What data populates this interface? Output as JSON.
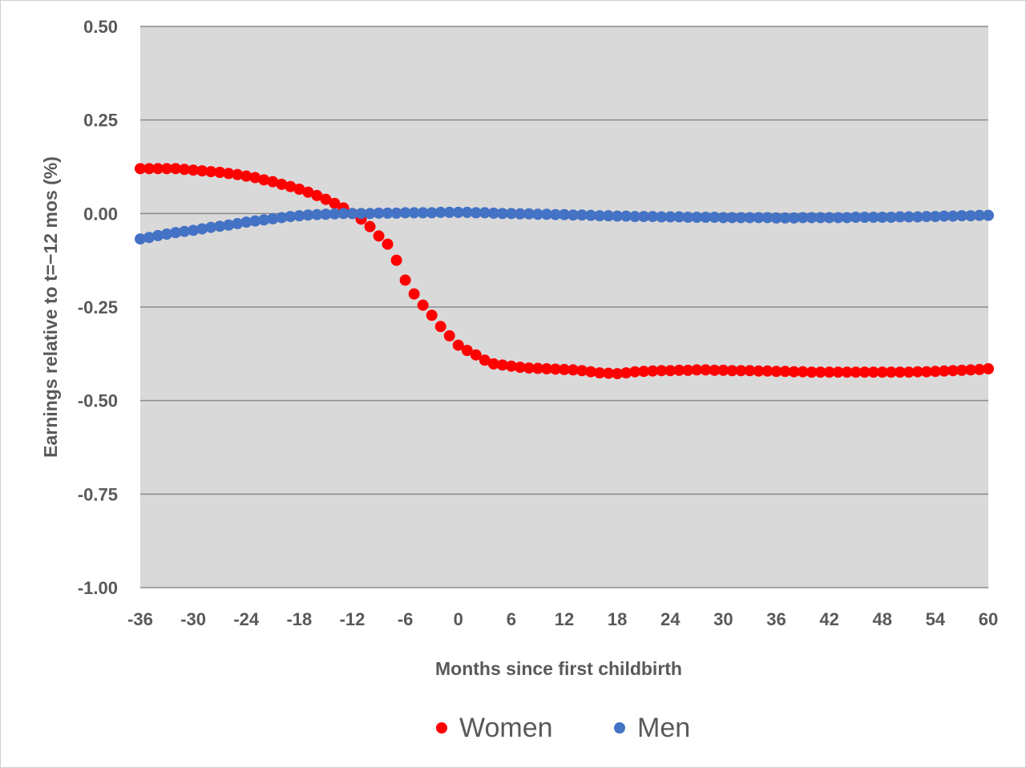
{
  "chart_data": {
    "type": "scatter",
    "title": "",
    "xlabel": "Months since first childbirth",
    "ylabel": "Earnings relative to t=−12 mos (%)",
    "xlim": [
      -36,
      60
    ],
    "ylim": [
      -1.0,
      0.5
    ],
    "x_ticks": [
      -36,
      -30,
      -24,
      -18,
      -12,
      -6,
      0,
      6,
      12,
      18,
      24,
      30,
      36,
      42,
      48,
      54,
      60
    ],
    "x_tick_labels": [
      "-36",
      "-30",
      "-24",
      "-18",
      "-12",
      "-6",
      "0",
      "6",
      "12",
      "18",
      "24",
      "30",
      "36",
      "42",
      "48",
      "54",
      "60"
    ],
    "y_ticks": [
      0.5,
      0.25,
      0.0,
      -0.25,
      -0.5,
      -0.75,
      -1.0
    ],
    "y_tick_labels": [
      "0.50",
      "0.25",
      "0.00",
      "-0.25",
      "-0.50",
      "-0.75",
      "-1.00"
    ],
    "grid": "horizontal",
    "plot_background": "#d9d9d9",
    "legend_position": "bottom",
    "x": [
      -36,
      -35,
      -34,
      -33,
      -32,
      -31,
      -30,
      -29,
      -28,
      -27,
      -26,
      -25,
      -24,
      -23,
      -22,
      -21,
      -20,
      -19,
      -18,
      -17,
      -16,
      -15,
      -14,
      -13,
      -12,
      -11,
      -10,
      -9,
      -8,
      -7,
      -6,
      -5,
      -4,
      -3,
      -2,
      -1,
      0,
      1,
      2,
      3,
      4,
      5,
      6,
      7,
      8,
      9,
      10,
      11,
      12,
      13,
      14,
      15,
      16,
      17,
      18,
      19,
      20,
      21,
      22,
      23,
      24,
      25,
      26,
      27,
      28,
      29,
      30,
      31,
      32,
      33,
      34,
      35,
      36,
      37,
      38,
      39,
      40,
      41,
      42,
      43,
      44,
      45,
      46,
      47,
      48,
      49,
      50,
      51,
      52,
      53,
      54,
      55,
      56,
      57,
      58,
      59,
      60
    ],
    "series": [
      {
        "name": "Women",
        "color": "#ff0000",
        "values": [
          0.12,
          0.12,
          0.12,
          0.12,
          0.12,
          0.118,
          0.116,
          0.114,
          0.112,
          0.11,
          0.107,
          0.104,
          0.1,
          0.096,
          0.09,
          0.085,
          0.078,
          0.072,
          0.065,
          0.057,
          0.048,
          0.038,
          0.027,
          0.015,
          0.0,
          -0.015,
          -0.035,
          -0.06,
          -0.082,
          -0.125,
          -0.178,
          -0.215,
          -0.245,
          -0.272,
          -0.302,
          -0.327,
          -0.352,
          -0.366,
          -0.378,
          -0.392,
          -0.402,
          -0.405,
          -0.408,
          -0.411,
          -0.413,
          -0.414,
          -0.415,
          -0.416,
          -0.417,
          -0.418,
          -0.42,
          -0.423,
          -0.426,
          -0.427,
          -0.428,
          -0.426,
          -0.423,
          -0.422,
          -0.421,
          -0.42,
          -0.42,
          -0.419,
          -0.419,
          -0.418,
          -0.418,
          -0.419,
          -0.419,
          -0.42,
          -0.42,
          -0.42,
          -0.421,
          -0.421,
          -0.422,
          -0.422,
          -0.423,
          -0.423,
          -0.424,
          -0.424,
          -0.424,
          -0.424,
          -0.424,
          -0.424,
          -0.424,
          -0.424,
          -0.424,
          -0.424,
          -0.424,
          -0.424,
          -0.423,
          -0.423,
          -0.422,
          -0.421,
          -0.42,
          -0.419,
          -0.418,
          -0.417,
          -0.415
        ]
      },
      {
        "name": "Men",
        "color": "#4472c4",
        "values": [
          -0.068,
          -0.064,
          -0.059,
          -0.055,
          -0.051,
          -0.048,
          -0.045,
          -0.041,
          -0.037,
          -0.034,
          -0.031,
          -0.027,
          -0.023,
          -0.02,
          -0.017,
          -0.014,
          -0.011,
          -0.008,
          -0.006,
          -0.004,
          -0.003,
          -0.002,
          -0.001,
          0.0,
          0.0,
          0.0,
          0.0,
          0.001,
          0.001,
          0.001,
          0.002,
          0.002,
          0.002,
          0.002,
          0.003,
          0.003,
          0.003,
          0.003,
          0.002,
          0.002,
          0.001,
          0.0,
          0.0,
          -0.001,
          -0.001,
          -0.002,
          -0.002,
          -0.003,
          -0.003,
          -0.004,
          -0.004,
          -0.005,
          -0.006,
          -0.006,
          -0.007,
          -0.007,
          -0.008,
          -0.008,
          -0.008,
          -0.009,
          -0.009,
          -0.009,
          -0.01,
          -0.01,
          -0.01,
          -0.01,
          -0.011,
          -0.011,
          -0.011,
          -0.011,
          -0.011,
          -0.011,
          -0.012,
          -0.012,
          -0.012,
          -0.011,
          -0.011,
          -0.011,
          -0.011,
          -0.011,
          -0.011,
          -0.01,
          -0.01,
          -0.01,
          -0.01,
          -0.01,
          -0.009,
          -0.009,
          -0.009,
          -0.008,
          -0.008,
          -0.007,
          -0.007,
          -0.006,
          -0.006,
          -0.005,
          -0.005
        ]
      }
    ]
  }
}
